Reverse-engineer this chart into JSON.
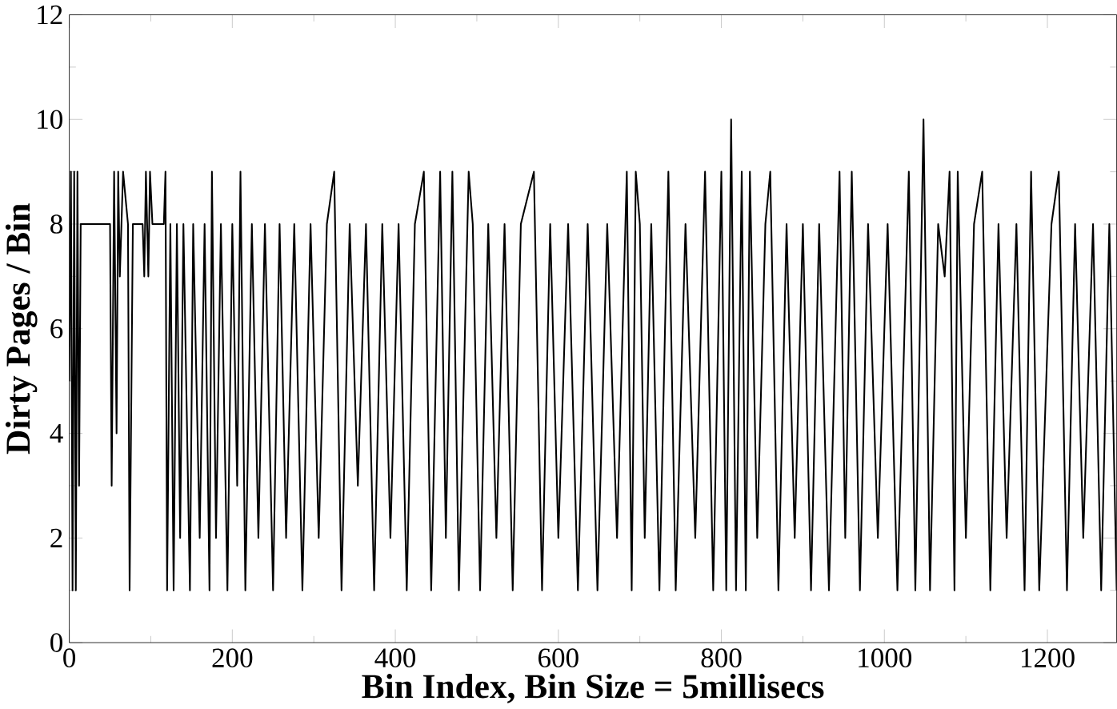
{
  "chart_data": {
    "type": "line",
    "xlabel": "Bin Index,  Bin Size = 5millisecs",
    "ylabel": "Dirty Pages / Bin",
    "xlim": [
      0,
      1285
    ],
    "ylim": [
      0,
      12
    ],
    "xticks": [
      0,
      200,
      400,
      600,
      800,
      1000,
      1200
    ],
    "yticks": [
      0,
      2,
      4,
      6,
      8,
      10,
      12
    ],
    "grid": false,
    "marker": "none",
    "line_style": "solid",
    "series": [
      {
        "color": "#000000",
        "x": [
          0,
          2,
          4,
          6,
          8,
          10,
          12,
          14,
          20,
          50,
          52,
          55,
          58,
          60,
          62,
          66,
          72,
          74,
          78,
          90,
          92,
          94,
          97,
          99,
          102,
          116,
          118,
          120,
          124,
          128,
          132,
          136,
          140,
          148,
          152,
          160,
          166,
          172,
          175,
          180,
          186,
          194,
          200,
          206,
          210,
          216,
          224,
          232,
          240,
          250,
          258,
          266,
          276,
          286,
          296,
          306,
          316,
          325,
          334,
          344,
          354,
          364,
          374,
          384,
          394,
          404,
          414,
          424,
          435,
          444,
          455,
          462,
          470,
          478,
          490,
          495,
          504,
          514,
          524,
          534,
          544,
          554,
          570,
          580,
          590,
          600,
          612,
          624,
          636,
          648,
          660,
          672,
          684,
          690,
          695,
          700,
          706,
          714,
          724,
          735,
          744,
          756,
          768,
          780,
          790,
          800,
          806,
          812,
          818,
          825,
          830,
          835,
          844,
          854,
          860,
          870,
          880,
          890,
          900,
          910,
          920,
          932,
          945,
          952,
          960,
          970,
          980,
          992,
          1004,
          1016,
          1030,
          1038,
          1048,
          1056,
          1066,
          1074,
          1080,
          1086,
          1090,
          1100,
          1110,
          1120,
          1130,
          1140,
          1150,
          1162,
          1172,
          1180,
          1190,
          1205,
          1214,
          1224,
          1234,
          1244,
          1256,
          1266,
          1276,
          1285
        ],
        "values": [
          5,
          9,
          1,
          9,
          1,
          9,
          3,
          8,
          8,
          8,
          3,
          9,
          4,
          9,
          7,
          9,
          8,
          1,
          8,
          8,
          7,
          9,
          7,
          9,
          8,
          8,
          9,
          1,
          8,
          1,
          8,
          2,
          8,
          1,
          8,
          2,
          8,
          1,
          9,
          2,
          8,
          1,
          8,
          3,
          9,
          1,
          8,
          2,
          8,
          1,
          8,
          2,
          8,
          1,
          8,
          2,
          8,
          9,
          1,
          8,
          3,
          8,
          1,
          8,
          2,
          8,
          1,
          8,
          9,
          1,
          9,
          2,
          9,
          1,
          9,
          8,
          1,
          8,
          2,
          8,
          1,
          8,
          9,
          1,
          8,
          2,
          8,
          1,
          8,
          1,
          8,
          2,
          9,
          1,
          9,
          8,
          2,
          8,
          1,
          9,
          1,
          8,
          2,
          9,
          1,
          9,
          1,
          10,
          1,
          9,
          1,
          9,
          2,
          8,
          9,
          1,
          8,
          2,
          8,
          1,
          8,
          1,
          9,
          2,
          9,
          1,
          8,
          2,
          8,
          1,
          9,
          1,
          10,
          1,
          8,
          7,
          9,
          1,
          9,
          2,
          8,
          9,
          1,
          8,
          2,
          8,
          1,
          9,
          1,
          8,
          9,
          1,
          8,
          2,
          8,
          1,
          8,
          1
        ]
      }
    ]
  }
}
